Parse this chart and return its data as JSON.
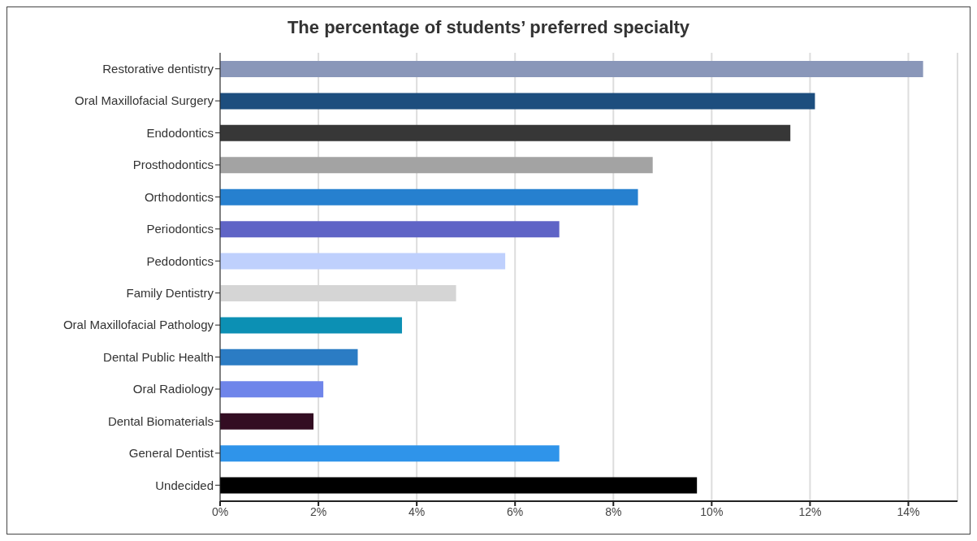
{
  "chart_data": {
    "type": "bar",
    "orientation": "horizontal",
    "title": "The percentage of students’ preferred specialty",
    "categories": [
      "Restorative dentistry",
      "Oral Maxillofacial Surgery",
      "Endodontics",
      "Prosthodontics",
      "Orthodontics",
      "Periodontics",
      "Pedodontics",
      "Family Dentistry",
      "Oral Maxillofacial Pathology",
      "Dental Public Health",
      "Oral Radiology",
      "Dental Biomaterials",
      "General Dentist",
      "Undecided"
    ],
    "values": [
      14.3,
      12.1,
      11.6,
      8.8,
      8.5,
      6.9,
      5.8,
      4.8,
      3.7,
      2.8,
      2.1,
      1.9,
      6.9,
      9.7
    ],
    "colors": [
      "#8a97b9",
      "#1d4e7e",
      "#373737",
      "#a3a3a3",
      "#2680cf",
      "#5f64c6",
      "#bfd0fd",
      "#d5d5d5",
      "#0c90b4",
      "#2b7cc4",
      "#6f85ea",
      "#330d22",
      "#2f94ea",
      "#000000"
    ],
    "xlim": [
      0,
      15
    ],
    "xticks": [
      {
        "value": 0,
        "label": "0%"
      },
      {
        "value": 2,
        "label": "2%"
      },
      {
        "value": 4,
        "label": "4%"
      },
      {
        "value": 6,
        "label": "6%"
      },
      {
        "value": 8,
        "label": "8%"
      },
      {
        "value": 10,
        "label": "10%"
      },
      {
        "value": 12,
        "label": "12%"
      },
      {
        "value": 14,
        "label": "14%"
      }
    ],
    "grid": "x"
  }
}
